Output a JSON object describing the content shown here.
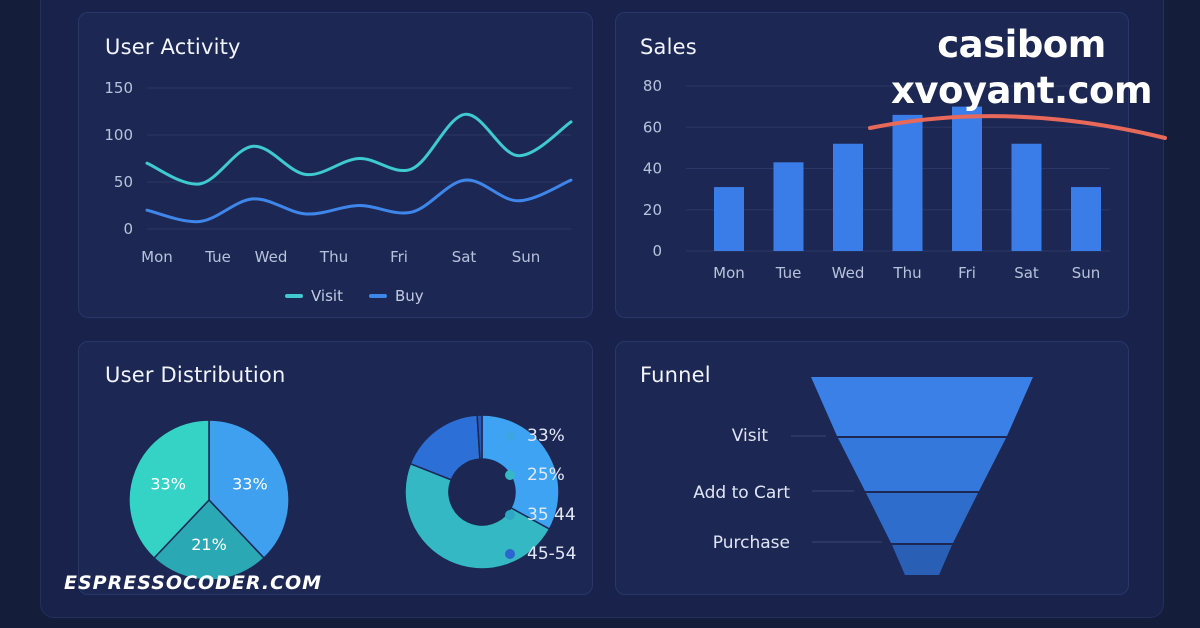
{
  "panels": {
    "activity": {
      "title": "User Activity"
    },
    "sales": {
      "title": "Sales"
    },
    "distribution": {
      "title": "User Distribution"
    },
    "funnel": {
      "title": "Funnel"
    }
  },
  "chart_data": [
    {
      "type": "line",
      "title": "User Activity",
      "categories": [
        "Mon",
        "Tue",
        "Wed",
        "Thu",
        "Fri",
        "Sat",
        "Sun"
      ],
      "y_ticks": [
        "150",
        "100",
        "50",
        "0"
      ],
      "ylim": [
        0,
        150
      ],
      "series": [
        {
          "name": "Visit",
          "color": "#3fc9d0",
          "values": [
            70,
            48,
            88,
            58,
            75,
            64,
            122,
            78,
            114
          ]
        },
        {
          "name": "Buy",
          "color": "#3f86ea",
          "values": [
            20,
            8,
            32,
            16,
            25,
            18,
            52,
            30,
            52
          ]
        }
      ],
      "x_values": [
        0,
        1,
        2,
        3,
        4,
        5,
        6,
        7,
        8
      ],
      "legend": "bottom",
      "grid": true
    },
    {
      "type": "bar",
      "title": "Sales",
      "categories": [
        "Mon",
        "Tue",
        "Wed",
        "Thu",
        "Fri",
        "Sat",
        "Sun"
      ],
      "values": [
        31,
        43,
        52,
        66,
        70,
        52,
        31
      ],
      "y_ticks": [
        "80",
        "60",
        "40",
        "20",
        "0"
      ],
      "ylim": [
        0,
        80
      ],
      "color": "#3a7de8",
      "grid": true
    },
    {
      "type": "pie",
      "title": "User Distribution",
      "slices": [
        {
          "label": "33%",
          "value": 33,
          "color": "#3fa0f0"
        },
        {
          "label": "21%",
          "value": 21,
          "color": "#2aa9b4"
        },
        {
          "label": "33%",
          "value": 33,
          "color": "#35d3c6"
        }
      ]
    },
    {
      "type": "pie",
      "subtype": "donut",
      "slices": [
        {
          "value": 33,
          "color": "#3ea3f2"
        },
        {
          "value": 48,
          "color": "#33b8c4"
        },
        {
          "value": 18,
          "color": "#2c6fd6"
        },
        {
          "value": 1,
          "color": "#2d59b6"
        }
      ],
      "legend": [
        {
          "label": "33%",
          "color": "#3ea5e4"
        },
        {
          "label": "25%",
          "color": "#35b9c6"
        },
        {
          "label": "35 44",
          "color": "#2fa6c4"
        },
        {
          "label": "45-54",
          "color": "#2c64d0"
        }
      ]
    },
    {
      "type": "funnel",
      "title": "Funnel",
      "stages": [
        {
          "label": "Visit",
          "value": 100
        },
        {
          "label": "Add to Cart",
          "value": 66
        },
        {
          "label": "Purchase",
          "value": 38
        }
      ],
      "colors": [
        "#3a80e6",
        "#3478dc",
        "#2f6dcc",
        "#2a5fb6"
      ]
    }
  ],
  "watermarks": {
    "line1": "casibom",
    "line2": "xvoyant.com",
    "footer": "ESPRESSOCODER.COM",
    "stroke_color": "#e8695a"
  }
}
